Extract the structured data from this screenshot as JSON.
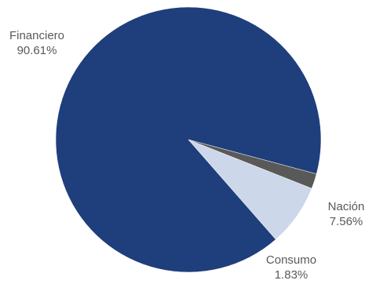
{
  "chart_data": {
    "type": "pie",
    "title": "",
    "slices": [
      {
        "label": "Financiero",
        "value": 90.61,
        "value_label": "90.61%",
        "color": "#1f3e7c"
      },
      {
        "label": "Nación",
        "value": 7.56,
        "value_label": "7.56%",
        "color": "#cdd7ea"
      },
      {
        "label": "Consumo",
        "value": 1.83,
        "value_label": "1.83%",
        "color": "#595959"
      }
    ],
    "start_direction": "right, just below horizontal",
    "order": "clockwise",
    "legend": "none",
    "labels": "outside with percentages"
  }
}
